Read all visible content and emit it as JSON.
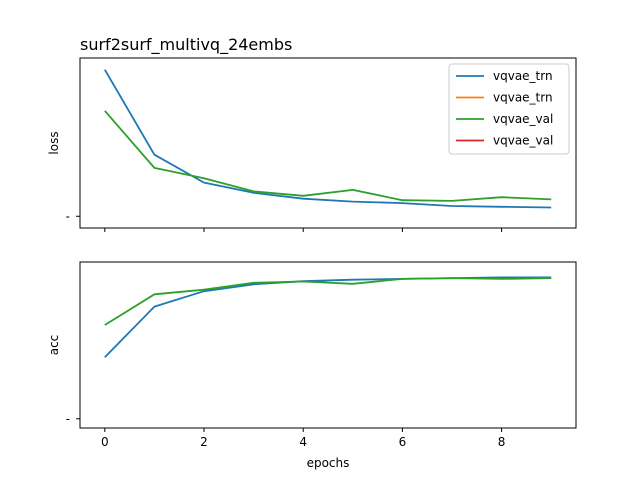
{
  "figure": {
    "title": "surf2surf_multivq_24embs",
    "xlabel": "epochs"
  },
  "legend": {
    "placement": "top-right",
    "entries": [
      {
        "label": "vqvae_trn",
        "color": "#1f77b4"
      },
      {
        "label": "vqvae_trn",
        "color": "#ff7f0e"
      },
      {
        "label": "vqvae_val",
        "color": "#2ca02c"
      },
      {
        "label": "vqvae_val",
        "color": "#d62728"
      }
    ]
  },
  "chart_data": [
    {
      "type": "line",
      "ylabel": "loss",
      "x": [
        0,
        1,
        2,
        3,
        4,
        5,
        6,
        7,
        8,
        9
      ],
      "xticks": [
        0,
        2,
        4,
        6,
        8
      ],
      "xlim": [
        -0.5,
        9.5
      ],
      "ylim": [
        -0.08,
        1.08
      ],
      "ytick_labels": [
        "-"
      ],
      "grid": false,
      "series": [
        {
          "name": "vqvae_trn",
          "color": "#1f77b4",
          "values": [
            1.0,
            0.42,
            0.23,
            0.16,
            0.12,
            0.1,
            0.09,
            0.07,
            0.065,
            0.06
          ]
        },
        {
          "name": "vqvae_val",
          "color": "#2ca02c",
          "values": [
            0.72,
            0.33,
            0.26,
            0.17,
            0.14,
            0.18,
            0.11,
            0.105,
            0.13,
            0.115
          ]
        }
      ]
    },
    {
      "type": "line",
      "ylabel": "acc",
      "x": [
        0,
        1,
        2,
        3,
        4,
        5,
        6,
        7,
        8,
        9
      ],
      "xticks": [
        0,
        2,
        4,
        6,
        8
      ],
      "xlim": [
        -0.5,
        9.5
      ],
      "ylim": [
        -0.06,
        1.02
      ],
      "ytick_labels": [
        "-"
      ],
      "grid": false,
      "series": [
        {
          "name": "vqvae_trn",
          "color": "#1f77b4",
          "values": [
            0.4,
            0.73,
            0.83,
            0.875,
            0.895,
            0.905,
            0.91,
            0.915,
            0.92,
            0.92
          ]
        },
        {
          "name": "vqvae_val",
          "color": "#2ca02c",
          "values": [
            0.61,
            0.81,
            0.84,
            0.885,
            0.893,
            0.878,
            0.91,
            0.915,
            0.91,
            0.915
          ]
        }
      ]
    }
  ]
}
